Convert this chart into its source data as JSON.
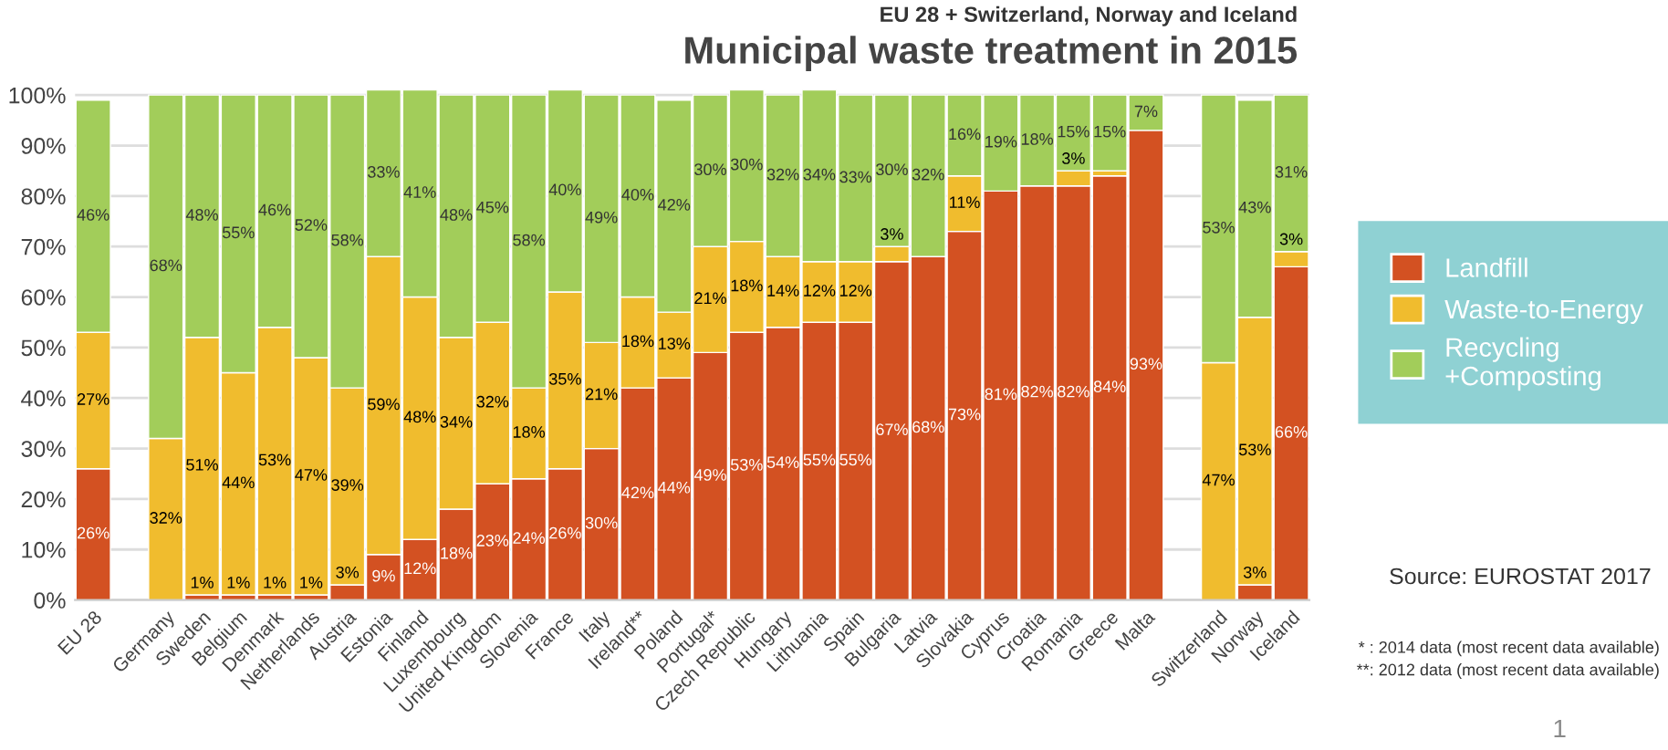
{
  "chart_data": {
    "type": "bar",
    "stacked": true,
    "title": "Municipal waste treatment in 2015",
    "subtitle": "EU 28 + Switzerland, Norway and Iceland",
    "categories": [
      "EU 28",
      null,
      "Germany",
      "Sweden",
      "Belgium",
      "Denmark",
      "Netherlands",
      "Austria",
      "Estonia",
      "Finland",
      "Luxembourg",
      "United Kingdom",
      "Slovenia",
      "France",
      "Italy",
      "Ireland**",
      "Poland",
      "Portugal*",
      "Czech Republic",
      "Hungary",
      "Lithuania",
      "Spain",
      "Bulgaria",
      "Latvia",
      "Slovakia",
      "Cyprus",
      "Croatia",
      "Romania",
      "Greece",
      "Malta",
      null,
      "Switzerland",
      "Norway",
      "Iceland"
    ],
    "series": [
      {
        "name": "Landfill",
        "color": "#d35122",
        "values": [
          26,
          null,
          0,
          1,
          1,
          1,
          1,
          3,
          9,
          12,
          18,
          23,
          24,
          26,
          30,
          42,
          44,
          49,
          53,
          54,
          55,
          55,
          67,
          68,
          73,
          81,
          82,
          82,
          84,
          93,
          null,
          0,
          3,
          66
        ],
        "value_labels": [
          "26%",
          null,
          null,
          "1%",
          "1%",
          "1%",
          "1%",
          "3%",
          "9%",
          "12%",
          "18%",
          "23%",
          "24%",
          "26%",
          "30%",
          "42%",
          "44%",
          "49%",
          "53%",
          "54%",
          "55%",
          "55%",
          "67%",
          "68%",
          "73%",
          "81%",
          "82%",
          "82%",
          "84%",
          "93%",
          null,
          null,
          "3%",
          "66%"
        ]
      },
      {
        "name": "Waste-to-Energy",
        "color": "#f0bc2e",
        "values": [
          27,
          null,
          32,
          51,
          44,
          53,
          47,
          39,
          59,
          48,
          34,
          32,
          18,
          35,
          21,
          18,
          13,
          21,
          18,
          14,
          12,
          12,
          3,
          0,
          11,
          0,
          0,
          3,
          1,
          null,
          null,
          47,
          53,
          3
        ],
        "value_labels": [
          "27%",
          null,
          "32%",
          "51%",
          "44%",
          "53%",
          "47%",
          "39%",
          "59%",
          "48%",
          "34%",
          "32%",
          "18%",
          "35%",
          "21%",
          "18%",
          "13%",
          "21%",
          "18%",
          "14%",
          "12%",
          "12%",
          "3%",
          null,
          "11%",
          null,
          null,
          "3%",
          null,
          null,
          null,
          "47%",
          "53%",
          "3%"
        ]
      },
      {
        "name": "Recycling\n+Composting",
        "color": "#a2cd5a",
        "values": [
          46,
          null,
          68,
          48,
          55,
          46,
          52,
          58,
          33,
          41,
          48,
          45,
          58,
          40,
          49,
          40,
          42,
          30,
          30,
          32,
          34,
          33,
          30,
          32,
          16,
          19,
          18,
          15,
          15,
          7,
          null,
          53,
          43,
          31
        ],
        "value_labels": [
          "46%",
          null,
          "68%",
          "48%",
          "55%",
          "46%",
          "52%",
          "58%",
          "33%",
          "41%",
          "48%",
          "45%",
          "58%",
          "40%",
          "49%",
          "40%",
          "42%",
          "30%",
          "30%",
          "32%",
          "34%",
          "33%",
          "30%",
          "32%",
          "16%",
          "19%",
          "18%",
          "15%",
          "15%",
          "7%",
          null,
          "53%",
          "43%",
          "31%"
        ]
      }
    ],
    "ylim": [
      0,
      101
    ],
    "yticks": [
      {
        "value": 0,
        "label": "0%"
      },
      {
        "value": 10,
        "label": "10%"
      },
      {
        "value": 20,
        "label": "20%"
      },
      {
        "value": 30,
        "label": "30%"
      },
      {
        "value": 40,
        "label": "40%"
      },
      {
        "value": 50,
        "label": "50%"
      },
      {
        "value": 60,
        "label": "60%"
      },
      {
        "value": 70,
        "label": "70%"
      },
      {
        "value": 80,
        "label": "80%"
      },
      {
        "value": 90,
        "label": "90%"
      },
      {
        "value": 100,
        "label": "100%"
      }
    ],
    "grid": "y",
    "legend": "right",
    "annotations": [
      "Source: EUROSTAT 2017",
      "* : 2014 data (most recent data available)",
      "**: 2012 data (most recent data available)",
      "1"
    ]
  }
}
